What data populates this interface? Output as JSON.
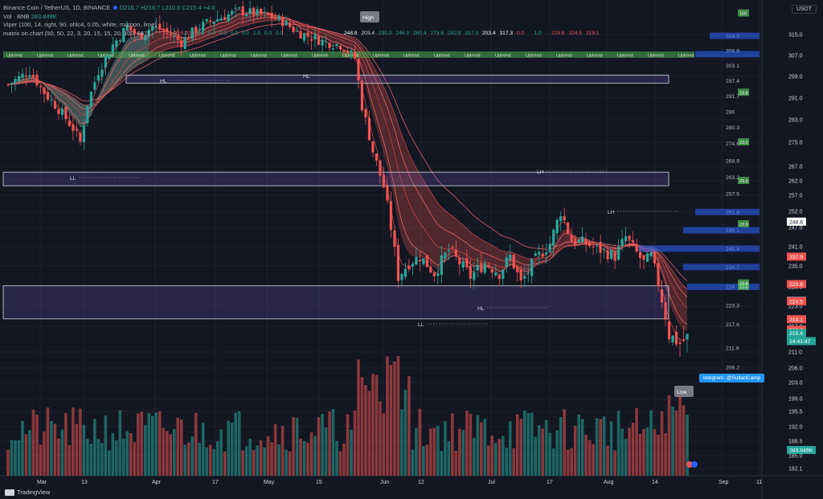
{
  "legend": {
    "symbol_line": "Binance Coin / TetherUS, 1D, BINANCE",
    "ohlc": "O216.7  H216.7  L210.8  C215.4  +4.6",
    "vol_label": "Vol · BNB",
    "vol_value": "283.849K",
    "viper": "Viper (100, 14, right, 90, ohlc4, 0.05, white, maroon, lime)",
    "matrix": "matrix on chart (50, 50, 22, 3, 20, 15, 15, 20, 100, 667)"
  },
  "currency": "USDT",
  "footer": {
    "brand": "TradingView"
  },
  "chart_data": {
    "type": "candlestick",
    "symbol": "Binance Coin / TetherUS",
    "interval": "1D",
    "exchange": "BINANCE",
    "x_ticks": [
      "Mar",
      "13",
      "Apr",
      "17",
      "May",
      "15",
      "Jun",
      "12",
      "Jul",
      "17",
      "Aug",
      "14",
      "Sep",
      "11"
    ],
    "y_ticks": [
      315.0,
      307.0,
      299.0,
      291.0,
      283.0,
      275.0,
      267.0,
      262.0,
      257.0,
      252.0,
      247.0,
      241.0,
      235.0,
      229.0,
      223.0,
      217.0,
      211.0,
      206.0,
      203.0,
      199.0,
      195.5,
      192.0,
      188.5,
      185.0,
      182.1
    ],
    "right_axis_labels": [
      {
        "value": "248.8",
        "color": "#ffffff",
        "text_color": "#131722"
      },
      {
        "value": "237.9",
        "color": "#ef5350",
        "text_color": "#ffffff"
      },
      {
        "value": "229.8",
        "color": "#ef5350",
        "text_color": "#ffffff"
      },
      {
        "value": "224.6",
        "color": "#ffffff",
        "text_color": "#131722"
      },
      {
        "value": "224.5",
        "color": "#ef5350",
        "text_color": "#ffffff"
      },
      {
        "value": "219.1",
        "color": "#ef5350",
        "text_color": "#ffffff"
      },
      {
        "value": "216.2",
        "color": "#ef5350",
        "text_color": "#ffffff"
      },
      {
        "value": "215.4",
        "color": "#26a69a",
        "text_color": "#ffffff"
      },
      {
        "value": "14:41:47",
        "color": "#26a69a",
        "text_color": "#ffffff"
      },
      {
        "value": "283.849K",
        "color": "#26a69a",
        "text_color": "#ffffff"
      }
    ],
    "level_labels": [
      {
        "price": 314.5,
        "text": "314.5"
      },
      {
        "price": 308.8,
        "text": "308.8"
      },
      {
        "price": 303.1,
        "text": "303.1"
      },
      {
        "price": 297.4,
        "text": "297.4"
      },
      {
        "price": 291.7,
        "text": "291.7"
      },
      {
        "price": 286.0,
        "text": "286"
      },
      {
        "price": 280.3,
        "text": "280.3"
      },
      {
        "price": 274.6,
        "text": "274.6"
      },
      {
        "price": 268.9,
        "text": "268.9"
      },
      {
        "price": 263.2,
        "text": "263.2"
      },
      {
        "price": 257.5,
        "text": "257.5"
      },
      {
        "price": 251.8,
        "text": "251.8"
      },
      {
        "price": 246.1,
        "text": "246.1"
      },
      {
        "price": 240.4,
        "text": "240.4"
      },
      {
        "price": 234.7,
        "text": "234.7"
      },
      {
        "price": 229.0,
        "text": "229"
      },
      {
        "price": 223.3,
        "text": "223.3"
      },
      {
        "price": 217.6,
        "text": "217.6"
      },
      {
        "price": 211.9,
        "text": "211.9"
      },
      {
        "price": 206.2,
        "text": "206.2"
      }
    ],
    "matrix_values": [
      "248.8",
      "203.4",
      "230.3",
      "246.9",
      "260.4",
      "273.8",
      "292.9",
      "317.3",
      "203.4",
      "317.3",
      "0.0",
      "1.0",
      "229.8",
      "224.5",
      "219.1"
    ],
    "matrix_values_left": [
      "217.9",
      "216.2",
      "216.9",
      "0.0",
      "0.0",
      "0.0",
      "0.0",
      "0.0",
      "1.0",
      "0.0",
      "0.0"
    ],
    "trend_strip_text": "Uptrend",
    "boxes": [
      {
        "label": "zone-1",
        "top": 299.5,
        "bottom": 296.5,
        "x_from": 0.17,
        "x_to": 0.94
      },
      {
        "label": "zone-2",
        "top": 265.0,
        "bottom": 260.3,
        "x_from": 0.0,
        "x_to": 0.94
      },
      {
        "label": "zone-3",
        "top": 229.3,
        "bottom": 219.2,
        "x_from": 0.0,
        "x_to": 0.94
      }
    ],
    "annotations": [
      {
        "text": "High"
      },
      {
        "text": "HL"
      },
      {
        "text": "HL"
      },
      {
        "text": "LL"
      },
      {
        "text": "LH"
      },
      {
        "text": "LH"
      },
      {
        "text": "LL"
      },
      {
        "text": "HL"
      },
      {
        "text": "Low"
      }
    ],
    "tags": [
      "100",
      "23.8",
      "23.0",
      "23.0",
      "23.0",
      "23.8",
      "23.8"
    ],
    "telegram": "telegram: @SultanCamp"
  }
}
